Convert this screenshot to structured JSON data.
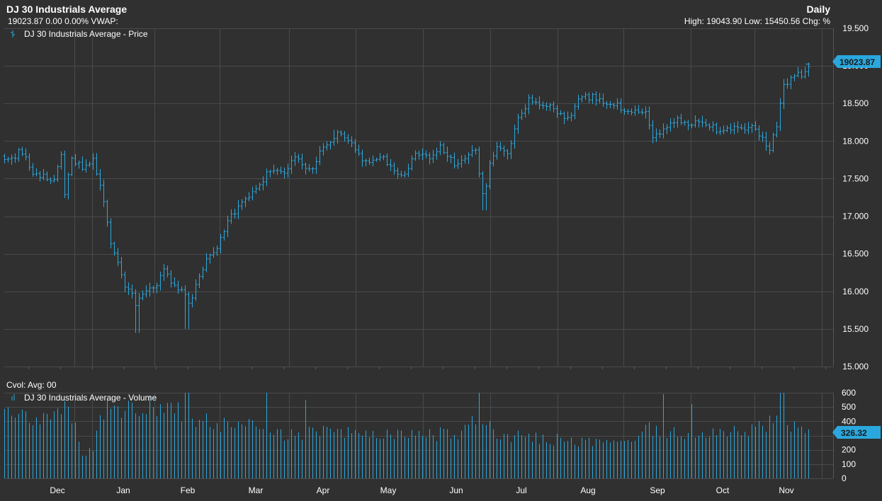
{
  "header": {
    "title": "DJ 30 Industrials Average",
    "frequency": "Daily",
    "quote_line": "19023.87 0.00 0.00%  VWAP:",
    "stats_line": "High: 19043.90 Low: 15450.56 Chg: %"
  },
  "volume_header": "Cvol:  Avg: 00",
  "colors": {
    "background": "#303030",
    "grid": "#4a4a4a",
    "series": "#2aa7dd",
    "tag": "#2aa7dd"
  },
  "chart_data": [
    {
      "type": "ohlc",
      "legend": "DJ 30 Industrials Average - Price",
      "last_value_tag": "19023.87",
      "last_value": 19023.87,
      "ylim": [
        15000,
        19500
      ],
      "y_ticks": [
        "15.000",
        "15.500",
        "16.000",
        "16.500",
        "17.000",
        "17.500",
        "18.000",
        "18.500",
        "19.000",
        "19.500"
      ],
      "y_tick_values": [
        15000,
        15500,
        16000,
        16500,
        17000,
        17500,
        18000,
        18500,
        19000,
        19500
      ],
      "x_ticks": [
        "Dec",
        "Jan",
        "Feb",
        "Mar",
        "Apr",
        "May",
        "Jun",
        "Jul",
        "Aug",
        "Sep",
        "Oct",
        "Nov"
      ],
      "grid": true,
      "anchors": [
        [
          0,
          17800
        ],
        [
          12,
          17720
        ],
        [
          22,
          17900
        ],
        [
          40,
          17550
        ],
        [
          70,
          17500
        ],
        [
          80,
          17800
        ],
        [
          85,
          17300
        ],
        [
          95,
          17750
        ],
        [
          110,
          17650
        ],
        [
          125,
          17750
        ],
        [
          140,
          17200
        ],
        [
          150,
          16600
        ],
        [
          170,
          16100
        ],
        [
          185,
          15850
        ],
        [
          200,
          16000
        ],
        [
          215,
          16100
        ],
        [
          225,
          16300
        ],
        [
          235,
          16100
        ],
        [
          250,
          16000
        ],
        [
          262,
          15800
        ],
        [
          270,
          16100
        ],
        [
          285,
          16400
        ],
        [
          300,
          16600
        ],
        [
          320,
          17000
        ],
        [
          345,
          17250
        ],
        [
          370,
          17550
        ],
        [
          395,
          17600
        ],
        [
          410,
          17800
        ],
        [
          430,
          17600
        ],
        [
          450,
          17900
        ],
        [
          470,
          18100
        ],
        [
          490,
          17950
        ],
        [
          510,
          17700
        ],
        [
          530,
          17800
        ],
        [
          560,
          17500
        ],
        [
          580,
          17850
        ],
        [
          600,
          17750
        ],
        [
          615,
          17950
        ],
        [
          635,
          17700
        ],
        [
          650,
          17750
        ],
        [
          665,
          17900
        ],
        [
          677,
          17150
        ],
        [
          685,
          17700
        ],
        [
          695,
          17900
        ],
        [
          710,
          17800
        ],
        [
          725,
          18300
        ],
        [
          740,
          18550
        ],
        [
          760,
          18500
        ],
        [
          780,
          18400
        ],
        [
          795,
          18300
        ],
        [
          810,
          18550
        ],
        [
          830,
          18600
        ],
        [
          850,
          18500
        ],
        [
          870,
          18450
        ],
        [
          885,
          18400
        ],
        [
          905,
          18400
        ],
        [
          915,
          18050
        ],
        [
          935,
          18200
        ],
        [
          950,
          18300
        ],
        [
          965,
          18200
        ],
        [
          985,
          18250
        ],
        [
          1005,
          18150
        ],
        [
          1025,
          18150
        ],
        [
          1050,
          18200
        ],
        [
          1070,
          18050
        ],
        [
          1080,
          17900
        ],
        [
          1090,
          18200
        ],
        [
          1100,
          18750
        ],
        [
          1115,
          18850
        ],
        [
          1125,
          18900
        ],
        [
          1137,
          19023.87
        ]
      ],
      "extremes": [
        [
          188,
          15450
        ],
        [
          258,
          15500
        ],
        [
          677,
          17080
        ],
        [
          468,
          18150
        ],
        [
          820,
          18650
        ],
        [
          1135,
          19043.9
        ]
      ]
    },
    {
      "type": "bar",
      "legend": "DJ 30 Industrials Average - Volume",
      "last_value_tag": "326.32",
      "last_value": 326.32,
      "ylim": [
        0,
        600
      ],
      "y_ticks": [
        "0",
        "100",
        "200",
        "300",
        "400",
        "500",
        "600"
      ],
      "y_tick_values": [
        0,
        100,
        200,
        300,
        400,
        500,
        600
      ],
      "grid": true,
      "anchors": [
        [
          0,
          450
        ],
        [
          30,
          420
        ],
        [
          60,
          460
        ],
        [
          80,
          520
        ],
        [
          100,
          380
        ],
        [
          110,
          150
        ],
        [
          125,
          220
        ],
        [
          140,
          500
        ],
        [
          160,
          480
        ],
        [
          190,
          500
        ],
        [
          220,
          520
        ],
        [
          250,
          480
        ],
        [
          270,
          420
        ],
        [
          300,
          380
        ],
        [
          340,
          380
        ],
        [
          370,
          360
        ],
        [
          400,
          310
        ],
        [
          440,
          330
        ],
        [
          480,
          320
        ],
        [
          520,
          300
        ],
        [
          560,
          300
        ],
        [
          600,
          310
        ],
        [
          640,
          330
        ],
        [
          670,
          420
        ],
        [
          690,
          330
        ],
        [
          720,
          300
        ],
        [
          760,
          290
        ],
        [
          800,
          260
        ],
        [
          840,
          260
        ],
        [
          880,
          270
        ],
        [
          910,
          350
        ],
        [
          940,
          320
        ],
        [
          980,
          320
        ],
        [
          1020,
          330
        ],
        [
          1060,
          340
        ],
        [
          1090,
          420
        ],
        [
          1100,
          380
        ],
        [
          1120,
          350
        ],
        [
          1137,
          326
        ]
      ],
      "spikes": [
        [
          180,
          530
        ],
        [
          258,
          600
        ],
        [
          370,
          600
        ],
        [
          425,
          550
        ],
        [
          670,
          600
        ],
        [
          930,
          590
        ],
        [
          970,
          520
        ],
        [
          1095,
          600
        ],
        [
          1099,
          600
        ]
      ]
    }
  ]
}
